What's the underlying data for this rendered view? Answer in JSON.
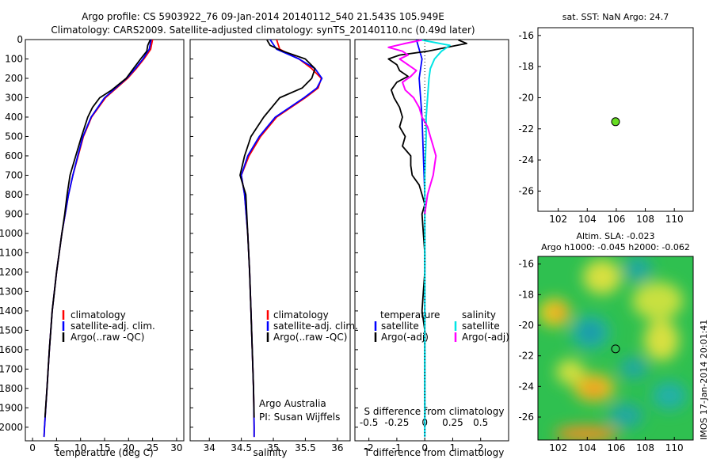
{
  "header": {
    "line1": "Argo profile: CS 5903922_76 09-Jan-2014 20140112_540 21.543S 105.949E",
    "line2": "Climatology: CARS2009. Satellite-adjusted climatology: synTS_20140110.nc (0.49d later)"
  },
  "side_stamp": "IMOS 17-Jan-2014 20:01:41",
  "colors": {
    "climatology": "#ff0000",
    "satellite": "#0000ff",
    "argo": "#000000",
    "salinity_sat": "#00e5e5",
    "salinity_argo": "#ff00ff",
    "float_marker": "#66dd22"
  },
  "chart_data": [
    {
      "id": "temperature",
      "type": "line",
      "xlabel": "temperature (deg C)",
      "xlim": [
        -1.5,
        31.5
      ],
      "ylim": [
        0,
        2070
      ],
      "xticks": [
        0,
        5,
        10,
        15,
        20,
        25,
        30
      ],
      "yticks": [
        0,
        100,
        200,
        300,
        400,
        500,
        600,
        700,
        800,
        900,
        1000,
        1100,
        1200,
        1300,
        1400,
        1500,
        1600,
        1700,
        1800,
        1900,
        2000
      ],
      "legend": [
        "climatology",
        "satellite-adj. clim.",
        "Argo(..raw -QC)"
      ],
      "series": [
        {
          "name": "climatology",
          "color": "#ff0000",
          "depth": [
            0,
            50,
            100,
            150,
            200,
            300,
            400,
            500,
            600,
            700,
            800,
            1000,
            1200,
            1400,
            1600,
            1800,
            2000,
            2050
          ],
          "values": [
            25,
            24.6,
            23.2,
            21.6,
            19.8,
            15.2,
            12.3,
            10.6,
            9.5,
            8.4,
            7.5,
            6.1,
            5.0,
            4.1,
            3.5,
            3.0,
            2.5,
            2.4
          ]
        },
        {
          "name": "satellite-adj. clim.",
          "color": "#0000ff",
          "depth": [
            0,
            50,
            100,
            150,
            200,
            300,
            400,
            500,
            600,
            700,
            800,
            1000,
            1200,
            1400,
            1600,
            1800,
            2000,
            2050
          ],
          "values": [
            24.7,
            24.3,
            23.0,
            21.4,
            19.6,
            15.0,
            12.2,
            10.5,
            9.4,
            8.4,
            7.5,
            6.1,
            5.0,
            4.1,
            3.5,
            3.0,
            2.5,
            2.4
          ]
        },
        {
          "name": "Argo(..raw -QC)",
          "color": "#000000",
          "depth": [
            2,
            30,
            60,
            100,
            150,
            200,
            260,
            300,
            350,
            400,
            500,
            600,
            700,
            800,
            900,
            1000,
            1200,
            1400,
            1600,
            1800,
            1950
          ],
          "values": [
            24.5,
            24.0,
            23.8,
            22.5,
            21.0,
            19.5,
            16.5,
            14.0,
            12.5,
            11.5,
            10.2,
            9.0,
            7.8,
            7.2,
            6.7,
            6.1,
            5.0,
            4.1,
            3.5,
            3.0,
            2.6
          ]
        }
      ]
    },
    {
      "id": "salinity",
      "type": "line",
      "xlabel": "salinity",
      "xlim": [
        33.7,
        36.2
      ],
      "ylim": [
        0,
        2070
      ],
      "xticks": [
        34,
        34.5,
        35,
        35.5,
        36
      ],
      "legend": [
        "climatology",
        "satellite-adj. clim.",
        "Argo(..raw -QC)"
      ],
      "annotation": [
        "Argo Australia",
        "PI: Susan Wijffels"
      ],
      "series": [
        {
          "name": "climatology",
          "color": "#ff0000",
          "depth": [
            0,
            50,
            100,
            150,
            200,
            250,
            300,
            400,
            500,
            600,
            700,
            800,
            1000,
            1200,
            1400,
            1600,
            1800,
            2000,
            2050
          ],
          "values": [
            35.05,
            35.1,
            35.4,
            35.6,
            35.75,
            35.7,
            35.5,
            35.05,
            34.8,
            34.62,
            34.5,
            34.55,
            34.6,
            34.63,
            34.65,
            34.67,
            34.69,
            34.7,
            34.7
          ]
        },
        {
          "name": "satellite-adj. clim.",
          "color": "#0000ff",
          "depth": [
            0,
            50,
            100,
            150,
            200,
            250,
            300,
            400,
            500,
            600,
            700,
            800,
            1000,
            1200,
            1400,
            1600,
            1800,
            2000,
            2050
          ],
          "values": [
            34.95,
            35.05,
            35.4,
            35.65,
            35.76,
            35.68,
            35.48,
            35.03,
            34.78,
            34.6,
            34.5,
            34.55,
            34.6,
            34.63,
            34.65,
            34.67,
            34.69,
            34.7,
            34.7
          ]
        },
        {
          "name": "Argo(..raw -QC)",
          "color": "#000000",
          "depth": [
            2,
            30,
            60,
            100,
            150,
            200,
            250,
            300,
            400,
            500,
            600,
            700,
            800,
            1000,
            1200,
            1400,
            1600,
            1800,
            1950
          ],
          "values": [
            34.9,
            34.95,
            35.15,
            35.5,
            35.65,
            35.6,
            35.45,
            35.1,
            34.85,
            34.65,
            34.55,
            34.48,
            34.57,
            34.6,
            34.63,
            34.65,
            34.67,
            34.69,
            34.7
          ]
        }
      ]
    },
    {
      "id": "differences",
      "type": "line",
      "xlabel": "T difference from climatology",
      "xlabel_top": "S difference from climatology",
      "xlim": [
        -2.5,
        3
      ],
      "ylim": [
        0,
        2070
      ],
      "xticks": [
        -2,
        -1,
        0,
        1,
        2
      ],
      "top_ticks": [
        "-0.5",
        "-0.25",
        "0",
        "0.25",
        "0.5"
      ],
      "legend_left_title": "temperature",
      "legend_right_title": "salinity",
      "legend_left": [
        "satellite",
        "Argo(-adj)"
      ],
      "legend_right": [
        "satellite",
        "Argo(-adj)"
      ],
      "series": [
        {
          "name": "satellite",
          "color": "#0000ff",
          "depth": [
            0,
            50,
            100,
            150,
            200,
            300,
            400,
            600,
            800,
            1000,
            1500,
            2000,
            2050
          ],
          "values": [
            -0.3,
            -0.2,
            -0.1,
            -0.15,
            -0.2,
            -0.15,
            -0.1,
            -0.05,
            0,
            0,
            0,
            0,
            0
          ]
        },
        {
          "name": "Argo(-adj)",
          "color": "#000000",
          "depth": [
            2,
            20,
            40,
            60,
            80,
            100,
            130,
            160,
            190,
            220,
            260,
            300,
            350,
            400,
            450,
            500,
            550,
            600,
            650,
            700,
            750,
            800,
            850,
            900,
            1000,
            1100,
            1200,
            1300,
            1400,
            1500,
            1700,
            1900,
            1950
          ],
          "values": [
            1.2,
            1.5,
            0.8,
            0.1,
            -0.9,
            -1.3,
            -1.0,
            -0.9,
            -0.6,
            -1.0,
            -1.2,
            -1.1,
            -0.9,
            -0.8,
            -0.9,
            -0.7,
            -0.8,
            -0.5,
            -0.5,
            -0.45,
            -0.2,
            -0.1,
            0,
            -0.1,
            -0.05,
            0,
            0,
            -0.05,
            -0.1,
            0,
            0,
            0,
            0
          ]
        },
        {
          "name": "salinity satellite",
          "color": "#00e5e5",
          "depth": [
            0,
            30,
            60,
            100,
            150,
            200,
            300,
            400,
            500,
            700,
            1000,
            1500,
            2000,
            2050
          ],
          "values": [
            -0.2,
            0.9,
            0.6,
            0.35,
            0.2,
            0.15,
            0.1,
            0.05,
            0.05,
            0,
            0,
            0,
            0,
            0
          ]
        },
        {
          "name": "salinity Argo(-adj)",
          "color": "#ff00ff",
          "depth": [
            2,
            20,
            40,
            60,
            80,
            100,
            130,
            160,
            190,
            220,
            260,
            300,
            350,
            400,
            450,
            500,
            550,
            600,
            650,
            700,
            750,
            800,
            850,
            900
          ],
          "values": [
            -0.1,
            -0.7,
            -1.3,
            -0.8,
            -0.6,
            -0.9,
            -0.6,
            -0.3,
            -0.5,
            -0.8,
            -0.7,
            -0.4,
            -0.2,
            -0.1,
            0.1,
            0.2,
            0.3,
            0.4,
            0.35,
            0.3,
            0.2,
            0.1,
            0.05,
            0
          ]
        }
      ]
    },
    {
      "id": "position",
      "type": "scatter",
      "title": "sat. SST: NaN Argo: 24.7",
      "xlim": [
        100.6,
        111.3
      ],
      "ylim": [
        -27.3,
        -15.5
      ],
      "xticks": [
        102,
        104,
        106,
        108,
        110
      ],
      "yticks": [
        -16,
        -18,
        -20,
        -22,
        -24,
        -26
      ],
      "points": [
        {
          "x": 105.949,
          "y": -21.543
        }
      ]
    },
    {
      "id": "sla",
      "type": "heatmap",
      "title_line1": "Altim. SLA: -0.023",
      "title_line2": "Argo h1000: -0.045 h2000: -0.062",
      "xlim": [
        100.6,
        111.3
      ],
      "ylim": [
        -27.5,
        -15.5
      ],
      "xticks": [
        102,
        104,
        106,
        108,
        110
      ],
      "yticks": [
        -16,
        -18,
        -20,
        -22,
        -24,
        -26
      ],
      "points": [
        {
          "x": 105.949,
          "y": -21.543
        }
      ]
    }
  ]
}
